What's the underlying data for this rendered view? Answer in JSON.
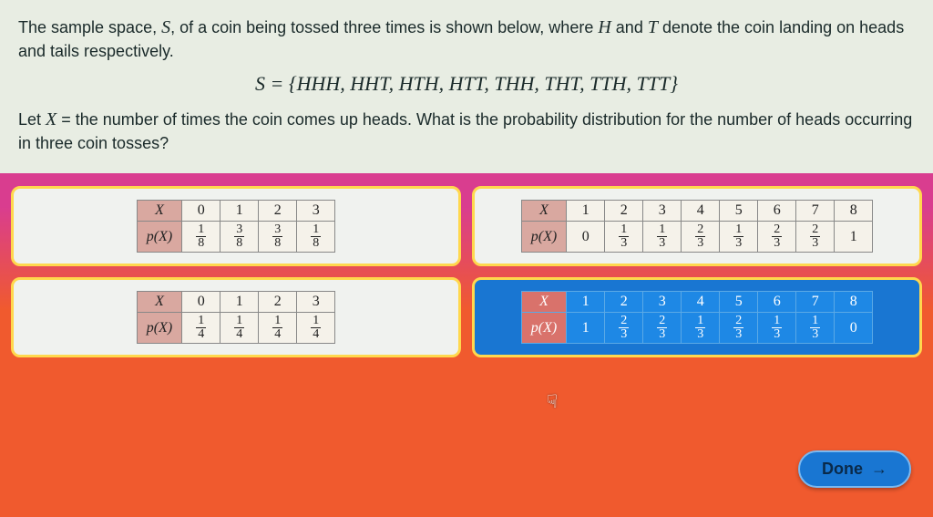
{
  "question": {
    "line1_a": "The sample space, ",
    "S": "S",
    "line1_b": ", of a coin being tossed three times is shown below, where ",
    "H": "H",
    "line1_c": " and ",
    "T": "T",
    "line1_d": " denote the coin landing on heads and tails respectively.",
    "formula": "S = {HHH, HHT, HTH, HTT, THH, THT, TTH, TTT}",
    "line2_a": "Let ",
    "X": "X",
    "line2_b": " = the number of times the coin comes up heads. What is the probability distribution for the number of heads occurring in three coin tosses?"
  },
  "row_labels": {
    "x": "X",
    "px": "p(X)"
  },
  "options": [
    {
      "selected": false,
      "x": [
        "0",
        "1",
        "2",
        "3"
      ],
      "p": [
        [
          "1",
          "8"
        ],
        [
          "3",
          "8"
        ],
        [
          "3",
          "8"
        ],
        [
          "1",
          "8"
        ]
      ]
    },
    {
      "selected": false,
      "x": [
        "1",
        "2",
        "3",
        "4",
        "5",
        "6",
        "7",
        "8"
      ],
      "p": [
        [
          "0",
          ""
        ],
        [
          "1",
          "3"
        ],
        [
          "1",
          "3"
        ],
        [
          "2",
          "3"
        ],
        [
          "1",
          "3"
        ],
        [
          "2",
          "3"
        ],
        [
          "2",
          "3"
        ],
        [
          "1",
          ""
        ]
      ]
    },
    {
      "selected": false,
      "x": [
        "0",
        "1",
        "2",
        "3"
      ],
      "p": [
        [
          "1",
          "4"
        ],
        [
          "1",
          "4"
        ],
        [
          "1",
          "4"
        ],
        [
          "1",
          "4"
        ]
      ]
    },
    {
      "selected": true,
      "x": [
        "1",
        "2",
        "3",
        "4",
        "5",
        "6",
        "7",
        "8"
      ],
      "p": [
        [
          "1",
          ""
        ],
        [
          "2",
          "3"
        ],
        [
          "2",
          "3"
        ],
        [
          "1",
          "3"
        ],
        [
          "2",
          "3"
        ],
        [
          "1",
          "3"
        ],
        [
          "1",
          "3"
        ],
        [
          "0",
          ""
        ]
      ]
    }
  ],
  "done_label": "Done",
  "done_arrow": "→",
  "colors": {
    "bg_top": "#d93d8f",
    "bg_bottom": "#f05a2e",
    "question_bg": "#e8ede3",
    "option_bg": "#f0f2ef",
    "option_border": "#ffd84d",
    "selected_bg": "#1976d2",
    "table_hdr_bg": "#d9a8a0",
    "done_bg": "#1976d2"
  }
}
